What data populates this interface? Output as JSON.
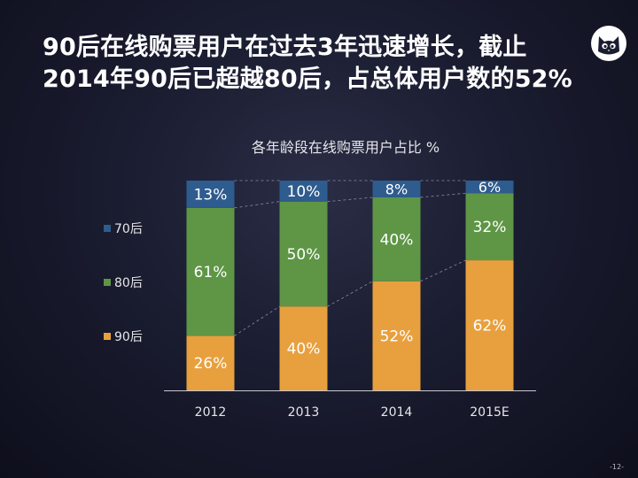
{
  "slide": {
    "headline_line1": "90后在线购票用户在过去3年迅速增长，截止",
    "headline_line2": "2014年90后已超越80后，占总体用户数的52%",
    "page_number": "-12-"
  },
  "logo": {
    "icon": "cat-face-icon"
  },
  "chart_data": {
    "type": "bar",
    "stacked": true,
    "title": "各年龄段在线购票用户占比 %",
    "xlabel": "",
    "ylabel": "",
    "categories": [
      "2012",
      "2013",
      "2014",
      "2015E"
    ],
    "series": [
      {
        "name": "90后",
        "values": [
          26,
          40,
          52,
          62
        ],
        "labels": [
          "26%",
          "40%",
          "52%",
          "62%"
        ],
        "color": "#E8A03E"
      },
      {
        "name": "80后",
        "values": [
          61,
          50,
          40,
          32
        ],
        "labels": [
          "61%",
          "50%",
          "40%",
          "32%"
        ],
        "color": "#5E9646"
      },
      {
        "name": "70后",
        "values": [
          13,
          10,
          8,
          6
        ],
        "labels": [
          "13%",
          "10%",
          "8%",
          "6%"
        ],
        "color": "#2E5C8E"
      }
    ],
    "ylim": [
      0,
      100
    ],
    "grid": false,
    "legend": "left",
    "connector_lines": "dashed"
  }
}
